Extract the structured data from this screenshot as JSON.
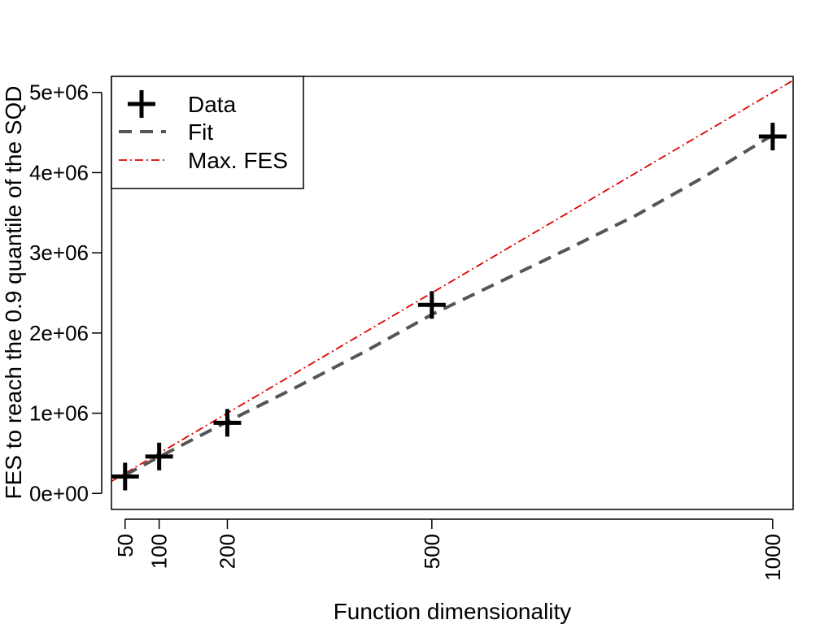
{
  "chart_data": {
    "type": "line",
    "title": "",
    "xlabel": "Function dimensionality",
    "ylabel": "FES to reach the 0.9 quantile of the SQD",
    "xlim": [
      30,
      1030
    ],
    "ylim": [
      -200000,
      5200000
    ],
    "x_ticks": [
      50,
      100,
      200,
      500,
      1000
    ],
    "x_tick_labels": [
      "50",
      "100",
      "200",
      "500",
      "1000"
    ],
    "y_ticks": [
      0,
      1000000,
      2000000,
      3000000,
      4000000,
      5000000
    ],
    "y_tick_labels": [
      "0e+00",
      "1e+06",
      "2e+06",
      "3e+06",
      "4e+06",
      "5e+06"
    ],
    "grid": false,
    "legend_position": "top-left",
    "series": [
      {
        "name": "Data",
        "kind": "points",
        "marker": "plus",
        "color": "#000000",
        "x": [
          50,
          100,
          200,
          500,
          1000
        ],
        "y": [
          210000,
          460000,
          880000,
          2350000,
          4450000
        ]
      },
      {
        "name": "Fit",
        "kind": "line",
        "style": "dashed",
        "color": "#555555",
        "x": [
          50,
          100,
          200,
          300,
          400,
          500,
          600,
          700,
          800,
          900,
          1000
        ],
        "y": [
          230000,
          455000,
          895000,
          1320000,
          1760000,
          2230000,
          2640000,
          3050000,
          3470000,
          3950000,
          4470000
        ]
      },
      {
        "name": "Max. FES",
        "kind": "line",
        "style": "dotdash",
        "color": "#dd0000",
        "x": [
          10,
          1040
        ],
        "y": [
          50000,
          5200000
        ]
      }
    ]
  }
}
